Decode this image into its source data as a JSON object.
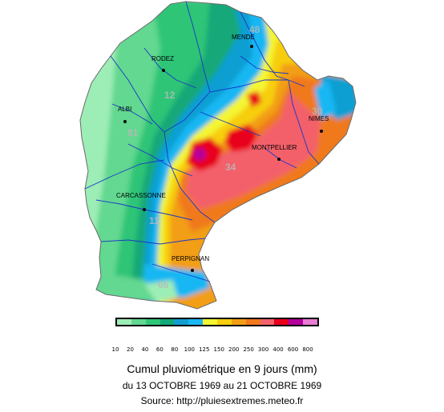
{
  "map": {
    "cities": [
      {
        "name": "MENDE",
        "lon": 3.5,
        "lat": 44.52
      },
      {
        "name": "RODEZ",
        "lon": 2.57,
        "lat": 44.35
      },
      {
        "name": "ALBI",
        "lon": 2.15,
        "lat": 43.93
      },
      {
        "name": "NIMES",
        "lon": 4.36,
        "lat": 43.84
      },
      {
        "name": "MONTPELLIER",
        "lon": 3.88,
        "lat": 43.61
      },
      {
        "name": "CARCASSONNE",
        "lon": 2.35,
        "lat": 43.21
      },
      {
        "name": "PERPIGNAN",
        "lon": 2.9,
        "lat": 42.7
      }
    ],
    "department_numbers": [
      "48",
      "12",
      "30",
      "81",
      "34",
      "11",
      "66"
    ],
    "legend": {
      "colors": [
        "#9dedb6",
        "#62d890",
        "#2ec577",
        "#12a878",
        "#119fd1",
        "#19b7f3",
        "#f4f533",
        "#f7ce10",
        "#f29e14",
        "#f0791c",
        "#f3616b",
        "#e8001b",
        "#b3009c",
        "#e77cd4"
      ],
      "labels": [
        "10",
        "20",
        "40",
        "60",
        "80",
        "100",
        "125",
        "150",
        "200",
        "250",
        "300",
        "400",
        "600",
        "800"
      ]
    }
  },
  "caption": {
    "title": "Cumul pluviométrique en 9 jours (mm)",
    "dates": "du 13 OCTOBRE 1969 au 21 OCTOBRE 1969",
    "source": "Source: http://pluiesextremes.meteo.fr"
  }
}
